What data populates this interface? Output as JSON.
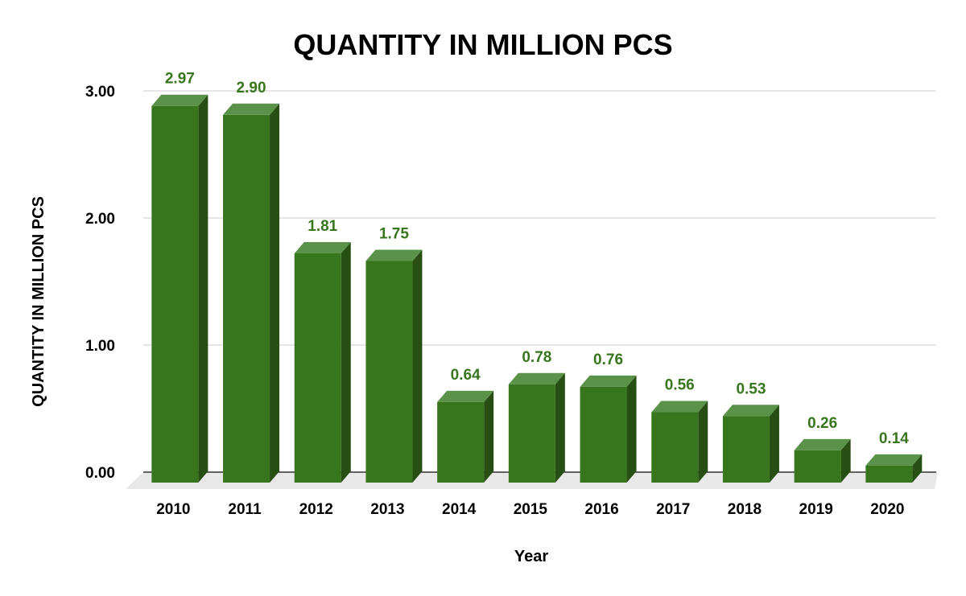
{
  "chart_data": {
    "type": "bar",
    "style": "3d-column",
    "title": "QUANTITY IN MILLION PCS",
    "xlabel": "Year",
    "ylabel": "QUANTITY IN MILLION PCS",
    "categories": [
      "2010",
      "2011",
      "2012",
      "2013",
      "2014",
      "2015",
      "2016",
      "2017",
      "2018",
      "2019",
      "2020"
    ],
    "values": [
      2.97,
      2.9,
      1.81,
      1.75,
      0.64,
      0.78,
      0.76,
      0.56,
      0.53,
      0.26,
      0.14
    ],
    "value_labels": [
      "2.97",
      "2.90",
      "1.81",
      "1.75",
      "0.64",
      "0.78",
      "0.76",
      "0.56",
      "0.53",
      "0.26",
      "0.14"
    ],
    "y_ticks": [
      0,
      1,
      2,
      3
    ],
    "y_tick_labels": [
      "0.00",
      "1.00",
      "2.00",
      "3.00"
    ],
    "ylim": [
      0,
      3
    ],
    "grid": true,
    "legend": "none",
    "colors": {
      "bar_front": "#38761d",
      "bar_top": "#5a9249",
      "bar_side": "#274e13",
      "data_label": "#38761d",
      "gridline": "#cccccc",
      "floor": "#e8e8e8",
      "axis_line": "#333333"
    }
  }
}
